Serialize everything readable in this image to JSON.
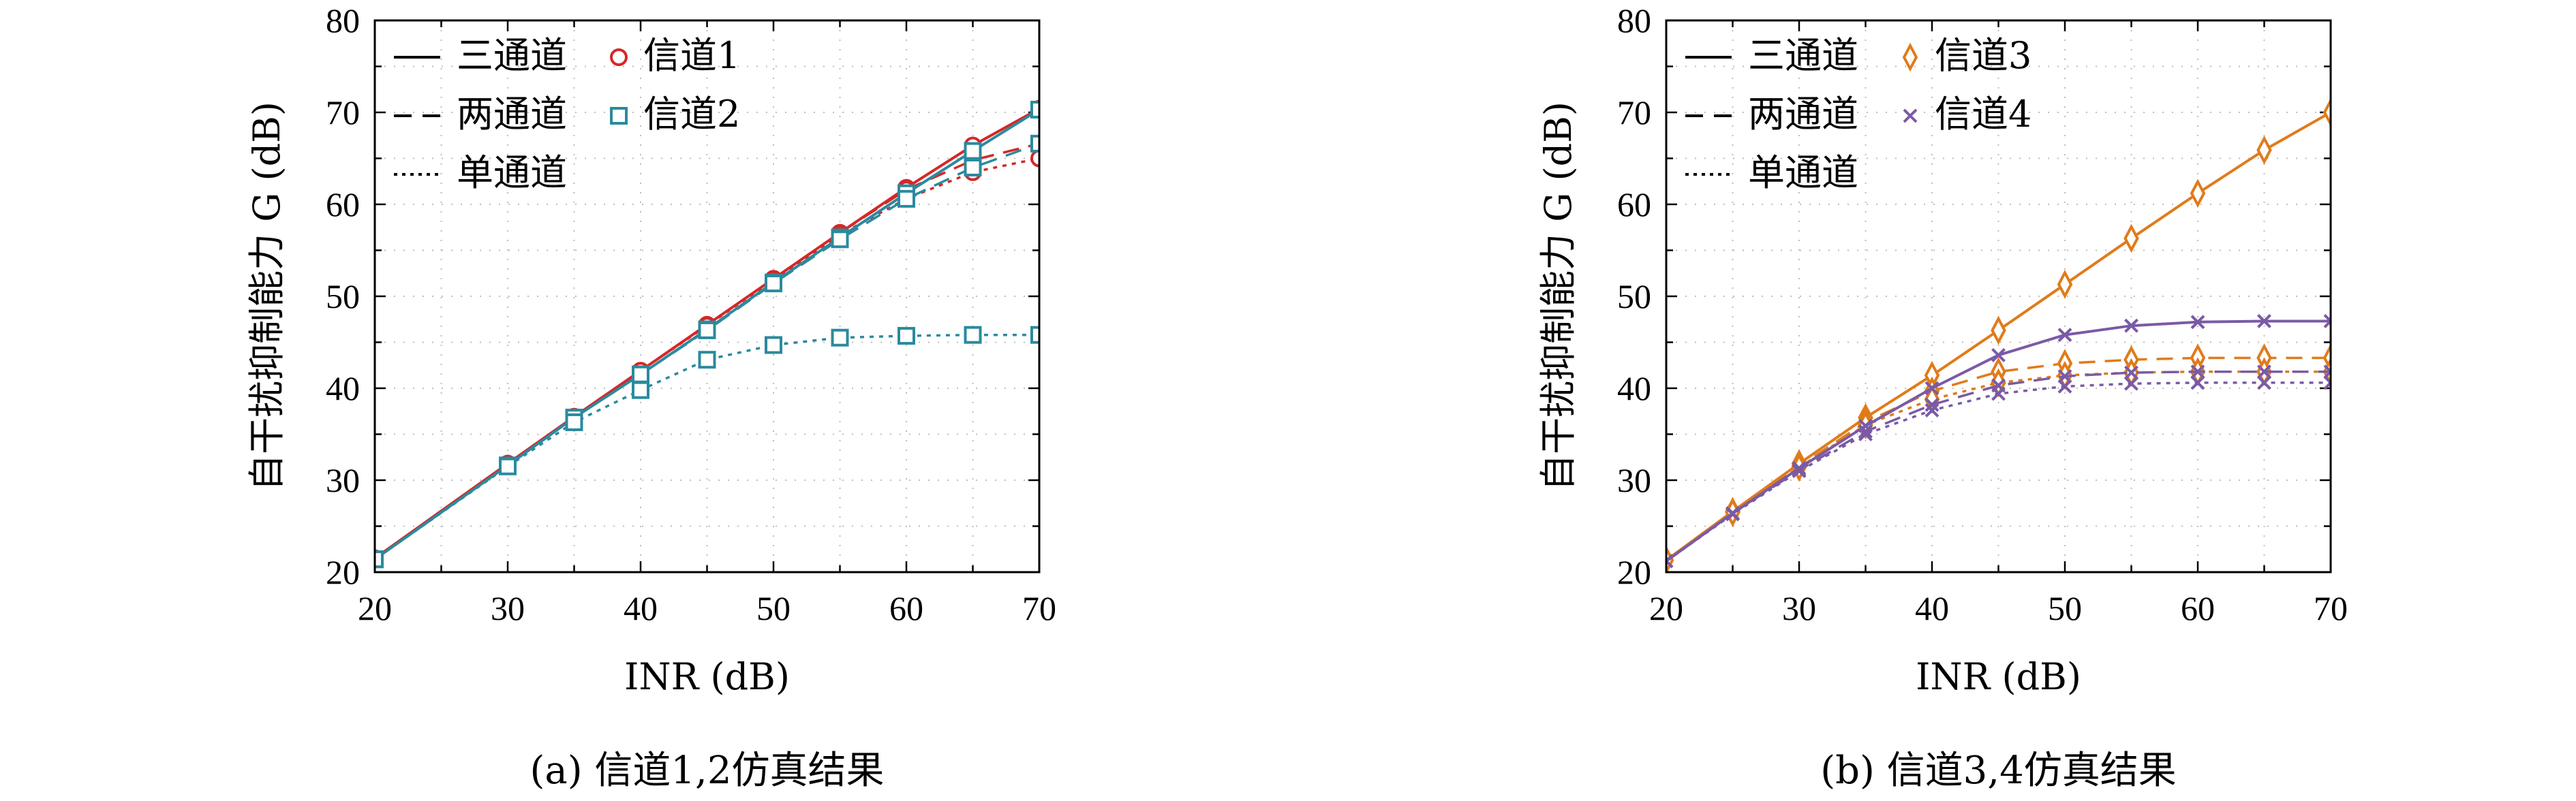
{
  "chart_data": [
    {
      "type": "line",
      "caption": "(a) 信道1,2仿真结果",
      "xlabel": "INR (dB)",
      "ylabel": "自干扰抑制能力 G (dB)",
      "xlim": [
        20,
        70
      ],
      "ylim": [
        20,
        80
      ],
      "xticks": [
        20,
        30,
        40,
        50,
        60,
        70
      ],
      "yticks": [
        20,
        30,
        40,
        50,
        60,
        70,
        80
      ],
      "grid": true,
      "legend_position": "top-left",
      "legend": {
        "styles": [
          {
            "name": "三通道",
            "dash": "solid"
          },
          {
            "name": "两通道",
            "dash": "dashed"
          },
          {
            "name": "单通道",
            "dash": "dotted"
          }
        ],
        "markers": [
          {
            "name": "信道1",
            "marker": "circle",
            "color": "#d62728"
          },
          {
            "name": "信道2",
            "marker": "square",
            "color": "#2b8a9e"
          }
        ]
      },
      "series": [
        {
          "channel": "信道1",
          "mode": "三通道",
          "color": "#d62728",
          "marker": "circle",
          "dash": "solid",
          "x": [
            20,
            30,
            35,
            40,
            45,
            50,
            55,
            60,
            65,
            70
          ],
          "y": [
            21.5,
            31.8,
            36.9,
            41.9,
            46.9,
            51.9,
            56.9,
            61.8,
            66.4,
            70.4
          ]
        },
        {
          "channel": "信道1",
          "mode": "两通道",
          "color": "#d62728",
          "marker": "circle",
          "dash": "dashed",
          "x": [
            20,
            30,
            35,
            40,
            45,
            50,
            55,
            60,
            65,
            70
          ],
          "y": [
            21.5,
            31.8,
            36.9,
            41.9,
            46.9,
            51.9,
            56.9,
            61.6,
            64.8,
            66.6
          ]
        },
        {
          "channel": "信道1",
          "mode": "单通道",
          "color": "#d62728",
          "marker": "circle",
          "dash": "dotted",
          "x": [
            20,
            30,
            35,
            40,
            45,
            50,
            55,
            60,
            65,
            70
          ],
          "y": [
            21.5,
            31.8,
            36.9,
            41.9,
            46.8,
            51.8,
            56.7,
            60.6,
            63.5,
            65.0
          ]
        },
        {
          "channel": "信道2",
          "mode": "三通道",
          "color": "#2b8a9e",
          "marker": "square",
          "dash": "solid",
          "x": [
            20,
            30,
            35,
            40,
            45,
            50,
            55,
            60,
            65,
            70
          ],
          "y": [
            21.4,
            31.6,
            36.8,
            41.5,
            46.4,
            51.5,
            56.4,
            61.2,
            65.8,
            70.3
          ]
        },
        {
          "channel": "信道2",
          "mode": "两通道",
          "color": "#2b8a9e",
          "marker": "square",
          "dash": "dashed",
          "x": [
            20,
            30,
            35,
            40,
            45,
            50,
            55,
            60,
            65,
            70
          ],
          "y": [
            21.4,
            31.6,
            36.8,
            41.5,
            46.3,
            51.4,
            56.2,
            60.6,
            64.0,
            66.6
          ]
        },
        {
          "channel": "信道2",
          "mode": "单通道",
          "color": "#2b8a9e",
          "marker": "square",
          "dash": "dotted",
          "x": [
            20,
            30,
            35,
            40,
            45,
            50,
            55,
            60,
            65,
            70
          ],
          "y": [
            21.4,
            31.5,
            36.3,
            39.8,
            43.1,
            44.7,
            45.5,
            45.7,
            45.8,
            45.8
          ]
        }
      ]
    },
    {
      "type": "line",
      "caption": "(b) 信道3,4仿真结果",
      "xlabel": "INR (dB)",
      "ylabel": "自干扰抑制能力 G (dB)",
      "xlim": [
        20,
        70
      ],
      "ylim": [
        20,
        80
      ],
      "xticks": [
        20,
        30,
        40,
        50,
        60,
        70
      ],
      "yticks": [
        20,
        30,
        40,
        50,
        60,
        70,
        80
      ],
      "grid": true,
      "legend_position": "top-left",
      "legend": {
        "styles": [
          {
            "name": "三通道",
            "dash": "solid"
          },
          {
            "name": "两通道",
            "dash": "dashed"
          },
          {
            "name": "单通道",
            "dash": "dotted"
          }
        ],
        "markers": [
          {
            "name": "信道3",
            "marker": "diamond",
            "color": "#e07b1a"
          },
          {
            "name": "信道4",
            "marker": "x",
            "color": "#7a5aa6"
          }
        ]
      },
      "series": [
        {
          "channel": "信道3",
          "mode": "三通道",
          "color": "#e07b1a",
          "marker": "diamond",
          "dash": "solid",
          "x": [
            20,
            25,
            30,
            35,
            40,
            45,
            50,
            55,
            60,
            65,
            70
          ],
          "y": [
            21.3,
            26.6,
            31.8,
            36.8,
            41.4,
            46.3,
            51.3,
            56.3,
            61.2,
            65.9,
            70.0
          ]
        },
        {
          "channel": "信道3",
          "mode": "两通道",
          "color": "#e07b1a",
          "marker": "diamond",
          "dash": "dashed",
          "x": [
            20,
            25,
            30,
            35,
            40,
            45,
            50,
            55,
            60,
            65,
            70
          ],
          "y": [
            21.3,
            26.5,
            31.5,
            36.3,
            39.7,
            41.8,
            42.7,
            43.1,
            43.3,
            43.3,
            43.3
          ]
        },
        {
          "channel": "信道3",
          "mode": "单通道",
          "color": "#e07b1a",
          "marker": "diamond",
          "dash": "dotted",
          "x": [
            20,
            25,
            30,
            35,
            40,
            45,
            50,
            55,
            60,
            65,
            70
          ],
          "y": [
            21.3,
            26.5,
            31.4,
            36.0,
            38.8,
            40.6,
            41.4,
            41.7,
            41.8,
            41.8,
            41.8
          ]
        },
        {
          "channel": "信道4",
          "mode": "三通道",
          "color": "#7a5aa6",
          "marker": "x",
          "dash": "solid",
          "x": [
            20,
            25,
            30,
            35,
            40,
            45,
            50,
            55,
            60,
            65,
            70
          ],
          "y": [
            21.2,
            26.4,
            31.3,
            35.9,
            40.0,
            43.6,
            45.8,
            46.8,
            47.2,
            47.3,
            47.3
          ]
        },
        {
          "channel": "信道4",
          "mode": "两通道",
          "color": "#7a5aa6",
          "marker": "x",
          "dash": "dashed",
          "x": [
            20,
            25,
            30,
            35,
            40,
            45,
            50,
            55,
            60,
            65,
            70
          ],
          "y": [
            21.2,
            26.4,
            31.1,
            35.3,
            38.2,
            40.3,
            41.3,
            41.7,
            41.8,
            41.8,
            41.8
          ]
        },
        {
          "channel": "信道4",
          "mode": "单通道",
          "color": "#7a5aa6",
          "marker": "x",
          "dash": "dotted",
          "x": [
            20,
            25,
            30,
            35,
            40,
            45,
            50,
            55,
            60,
            65,
            70
          ],
          "y": [
            21.2,
            26.3,
            31.0,
            35.0,
            37.6,
            39.4,
            40.2,
            40.5,
            40.6,
            40.6,
            40.6
          ]
        }
      ]
    }
  ]
}
